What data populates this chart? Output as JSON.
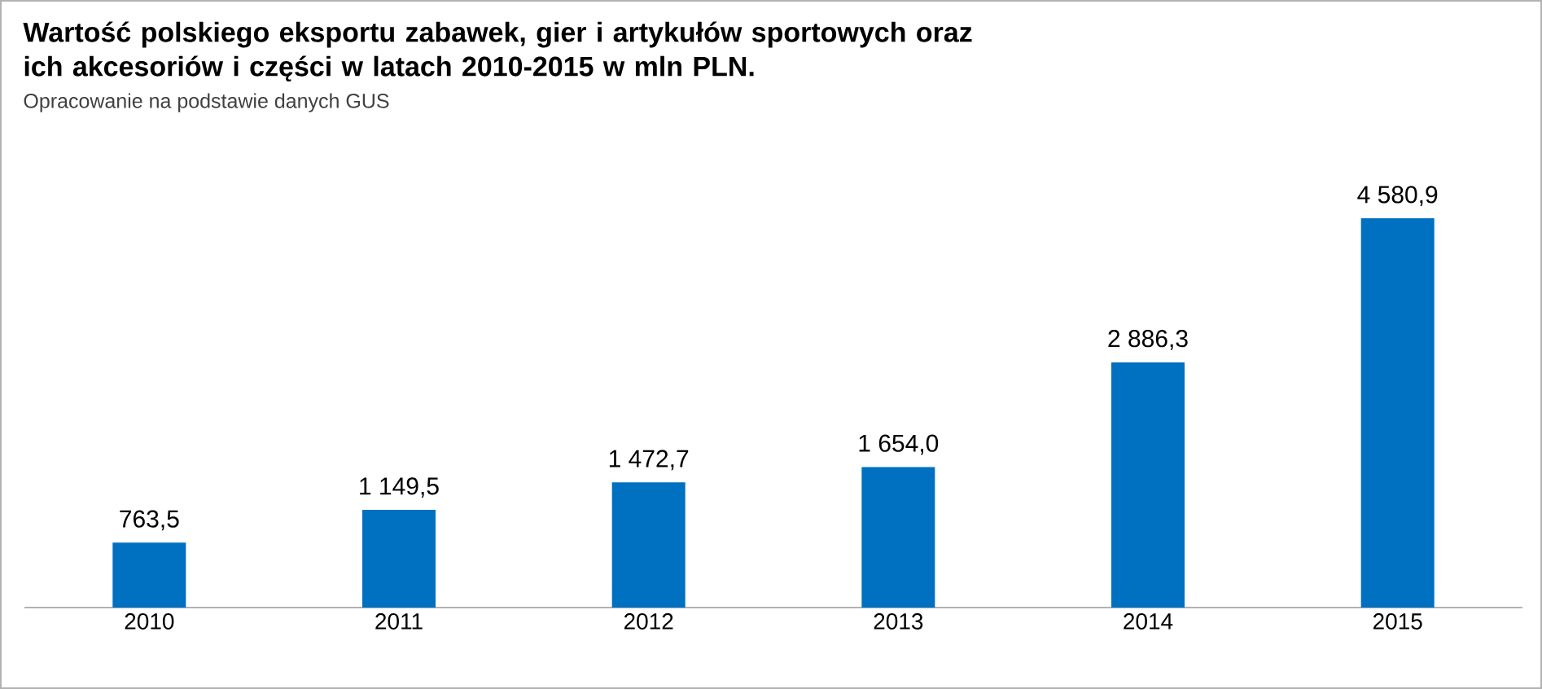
{
  "chart_data": {
    "type": "bar",
    "title": "Wartość polskiego eksportu zabawek, gier i artykułów sportowych oraz ich akcesoriów i części w latach 2010-2015 w mln PLN.",
    "subtitle": "Opracowanie na podstawie danych GUS",
    "categories": [
      "2010",
      "2011",
      "2012",
      "2013",
      "2014",
      "2015"
    ],
    "values": [
      763.5,
      1149.5,
      1472.7,
      1654.0,
      2886.3,
      4580.9
    ],
    "value_labels": [
      "763,5",
      "1 149,5",
      "1 472,7",
      "1 654,0",
      "2 886,3",
      "4 580,9"
    ],
    "color": "#0070c0"
  }
}
